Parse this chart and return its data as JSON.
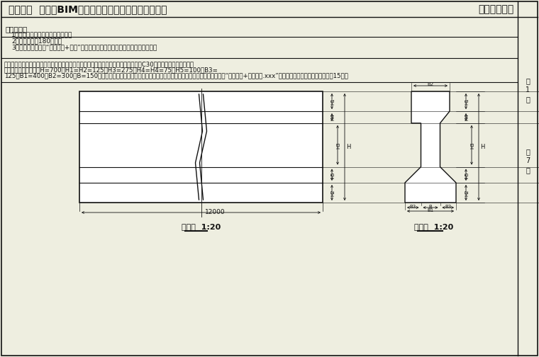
{
  "title": "第十二期  「全国BIM技能等级考试」二级（结构）试题",
  "title_right": "中国图学学会",
  "exam_req_title": "考试要求：",
  "exam_items": [
    "1．考试方式：计算机操作，闭卷；",
    "2．考试时间：180分钟；",
    "3．新建文件夹，以“准考证号+姓名”命名，用于存放本次考试中生成的全部文件。"
  ],
  "question": "一、根据如下混凝土梁正视图与侧视图，建立混凝土梁构件参数化模板，混凝土强度取C30，并如图设置相应参数名称。各参数默认值为：H=700，H1=H2=125，H3=275，H4=H4=75，H5=100，B3=125，B1=400，B2=300，B=150，同时应对各参数进行约束，确保细部参数总和等于总体尺寸参数。请将模型以“混凝土梁+考生姓名.xxx”为文件名保存到考生文件夹中。（15分）",
  "front_label": "正视图  1:20",
  "side_label": "侧视图  1:20",
  "bg_color": "#eeeee0",
  "line_color": "#111111",
  "white": "#ffffff",
  "page1": [
    "第",
    "1",
    "页"
  ],
  "page2": [
    "共",
    "7",
    "页"
  ]
}
